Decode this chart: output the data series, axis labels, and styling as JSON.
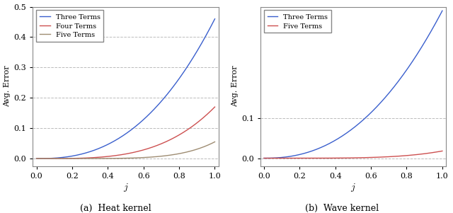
{
  "left_caption": "(a)  Heat kernel",
  "right_caption": "(b)  Wave kernel",
  "xlabel": "$j$",
  "ylabel": "Avg. Error",
  "left_ylim": [
    -0.025,
    0.5
  ],
  "right_ylim": [
    -0.02,
    0.38
  ],
  "xlim": [
    -0.02,
    1.02
  ],
  "left_yticks": [
    0.0,
    0.1,
    0.2,
    0.3,
    0.4,
    0.5
  ],
  "right_yticks": [
    0.0,
    0.1
  ],
  "xticks": [
    0,
    0.2,
    0.4,
    0.6,
    0.8,
    1
  ],
  "left_legend": [
    "Three Terms",
    "Four Terms",
    "Five Terms"
  ],
  "right_legend": [
    "Three Terms",
    "Five Terms"
  ],
  "colors": {
    "blue": "#3a5fcd",
    "red": "#cd5050",
    "tan": "#9e8c72"
  },
  "background": "#ffffff",
  "heat_3_amp": 0.46,
  "heat_3_exp": 2.5,
  "heat_4_amp": 0.17,
  "heat_4_exp": 3.5,
  "heat_5_amp": 0.055,
  "heat_5_exp": 5.5,
  "wave_3_amp": 0.37,
  "wave_3_exp": 2.3,
  "wave_5_amp": 0.018,
  "wave_5_exp": 4.5
}
